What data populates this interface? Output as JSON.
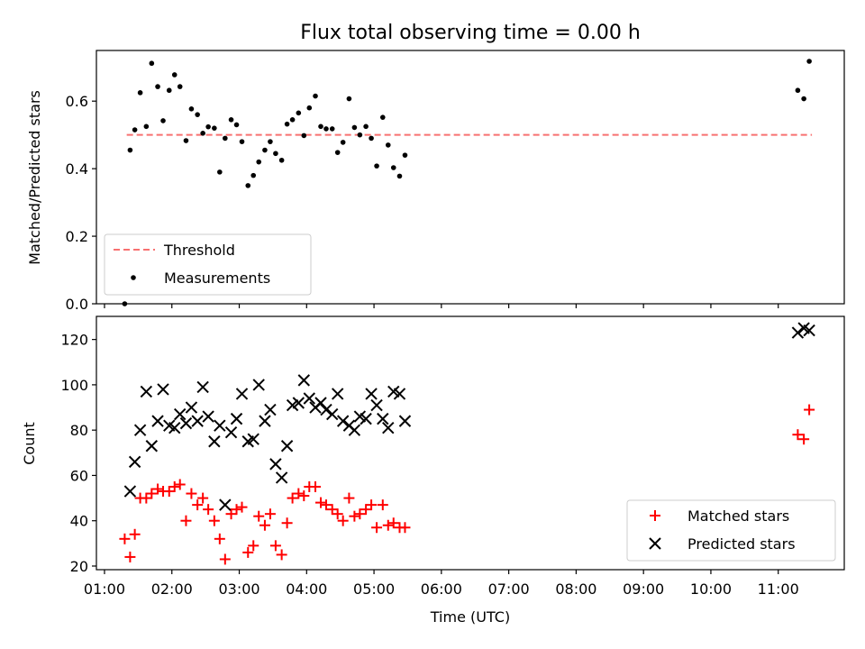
{
  "chart_data": [
    {
      "type": "scatter",
      "title": "Flux total observing time = 0.00 h",
      "ylabel": "Matched/Predicted stars",
      "xlabel": "",
      "x_unit": "hours UTC",
      "xlim": [
        0.88,
        11.98
      ],
      "ylim": [
        0.0,
        0.75
      ],
      "yticks": [
        0.0,
        0.2,
        0.4,
        0.6
      ],
      "ytick_labels": [
        "0.0",
        "0.2",
        "0.4",
        "0.6"
      ],
      "legend": "lower-left",
      "threshold": {
        "name": "Threshold",
        "value": 0.5,
        "x_range": [
          1.33,
          11.5
        ],
        "color": "#f87171"
      },
      "series": [
        {
          "name": "Measurements",
          "color": "#000000",
          "points": [
            [
              1.3,
              0.0
            ],
            [
              1.38,
              0.455
            ],
            [
              1.45,
              0.515
            ],
            [
              1.53,
              0.625
            ],
            [
              1.62,
              0.525
            ],
            [
              1.7,
              0.712
            ],
            [
              1.79,
              0.643
            ],
            [
              1.87,
              0.542
            ],
            [
              1.96,
              0.632
            ],
            [
              2.04,
              0.678
            ],
            [
              2.12,
              0.643
            ],
            [
              2.21,
              0.483
            ],
            [
              2.29,
              0.577
            ],
            [
              2.38,
              0.56
            ],
            [
              2.46,
              0.505
            ],
            [
              2.54,
              0.524
            ],
            [
              2.63,
              0.52
            ],
            [
              2.71,
              0.39
            ],
            [
              2.79,
              0.49
            ],
            [
              2.88,
              0.545
            ],
            [
              2.96,
              0.53
            ],
            [
              3.04,
              0.48
            ],
            [
              3.13,
              0.35
            ],
            [
              3.21,
              0.38
            ],
            [
              3.29,
              0.42
            ],
            [
              3.38,
              0.455
            ],
            [
              3.46,
              0.48
            ],
            [
              3.54,
              0.445
            ],
            [
              3.63,
              0.425
            ],
            [
              3.71,
              0.532
            ],
            [
              3.79,
              0.545
            ],
            [
              3.88,
              0.565
            ],
            [
              3.96,
              0.498
            ],
            [
              4.04,
              0.58
            ],
            [
              4.13,
              0.615
            ],
            [
              4.21,
              0.525
            ],
            [
              4.29,
              0.518
            ],
            [
              4.38,
              0.518
            ],
            [
              4.46,
              0.448
            ],
            [
              4.54,
              0.478
            ],
            [
              4.63,
              0.607
            ],
            [
              4.71,
              0.522
            ],
            [
              4.79,
              0.5
            ],
            [
              4.88,
              0.525
            ],
            [
              4.96,
              0.49
            ],
            [
              5.04,
              0.408
            ],
            [
              5.13,
              0.552
            ],
            [
              5.21,
              0.47
            ],
            [
              5.29,
              0.403
            ],
            [
              5.38,
              0.378
            ],
            [
              5.46,
              0.44
            ],
            [
              11.29,
              0.632
            ],
            [
              11.38,
              0.607
            ],
            [
              11.46,
              0.718
            ]
          ]
        }
      ]
    },
    {
      "type": "scatter",
      "title": "",
      "ylabel": "Count",
      "xlabel": "Time (UTC)",
      "x_unit": "hours UTC",
      "xlim": [
        0.88,
        11.98
      ],
      "ylim": [
        18.4,
        130.2
      ],
      "yticks": [
        20,
        40,
        60,
        80,
        100,
        120
      ],
      "ytick_labels": [
        "20",
        "40",
        "60",
        "80",
        "100",
        "120"
      ],
      "xticks": [
        1,
        2,
        3,
        4,
        5,
        6,
        7,
        8,
        9,
        10,
        11
      ],
      "xtick_labels": [
        "01:00",
        "02:00",
        "03:00",
        "04:00",
        "05:00",
        "06:00",
        "07:00",
        "08:00",
        "09:00",
        "10:00",
        "11:00"
      ],
      "legend": "lower-right",
      "series": [
        {
          "name": "Matched stars",
          "marker": "plus",
          "color": "#ff0000",
          "points": [
            [
              1.3,
              32
            ],
            [
              1.38,
              24
            ],
            [
              1.45,
              34
            ],
            [
              1.53,
              50
            ],
            [
              1.62,
              50
            ],
            [
              1.7,
              52
            ],
            [
              1.79,
              54
            ],
            [
              1.87,
              53
            ],
            [
              1.96,
              53
            ],
            [
              2.04,
              55
            ],
            [
              2.12,
              56
            ],
            [
              2.21,
              40
            ],
            [
              2.29,
              52
            ],
            [
              2.38,
              47
            ],
            [
              2.46,
              50
            ],
            [
              2.54,
              45
            ],
            [
              2.63,
              40
            ],
            [
              2.71,
              32
            ],
            [
              2.79,
              23
            ],
            [
              2.88,
              43
            ],
            [
              2.96,
              45
            ],
            [
              3.04,
              46
            ],
            [
              3.13,
              26
            ],
            [
              3.21,
              29
            ],
            [
              3.29,
              42
            ],
            [
              3.38,
              38
            ],
            [
              3.46,
              43
            ],
            [
              3.54,
              29
            ],
            [
              3.63,
              25
            ],
            [
              3.71,
              39
            ],
            [
              3.79,
              50
            ],
            [
              3.88,
              52
            ],
            [
              3.96,
              51
            ],
            [
              4.04,
              55
            ],
            [
              4.13,
              55
            ],
            [
              4.21,
              48
            ],
            [
              4.29,
              47
            ],
            [
              4.38,
              45
            ],
            [
              4.46,
              43
            ],
            [
              4.54,
              40
            ],
            [
              4.63,
              50
            ],
            [
              4.71,
              42
            ],
            [
              4.79,
              43
            ],
            [
              4.88,
              45
            ],
            [
              4.96,
              47
            ],
            [
              5.04,
              37
            ],
            [
              5.13,
              47
            ],
            [
              5.21,
              38
            ],
            [
              5.29,
              39
            ],
            [
              5.38,
              37
            ],
            [
              5.46,
              37
            ],
            [
              11.29,
              78
            ],
            [
              11.38,
              76
            ],
            [
              11.46,
              89
            ]
          ]
        },
        {
          "name": "Predicted stars",
          "marker": "x",
          "color": "#000000",
          "points": [
            [
              1.38,
              53
            ],
            [
              1.45,
              66
            ],
            [
              1.53,
              80
            ],
            [
              1.62,
              97
            ],
            [
              1.7,
              73
            ],
            [
              1.79,
              84
            ],
            [
              1.87,
              98
            ],
            [
              1.96,
              82
            ],
            [
              2.04,
              81
            ],
            [
              2.12,
              87
            ],
            [
              2.21,
              83
            ],
            [
              2.29,
              90
            ],
            [
              2.38,
              84
            ],
            [
              2.46,
              99
            ],
            [
              2.54,
              86
            ],
            [
              2.63,
              75
            ],
            [
              2.71,
              82
            ],
            [
              2.79,
              47
            ],
            [
              2.88,
              79
            ],
            [
              2.96,
              85
            ],
            [
              3.04,
              96
            ],
            [
              3.13,
              75
            ],
            [
              3.21,
              76
            ],
            [
              3.29,
              100
            ],
            [
              3.38,
              84
            ],
            [
              3.46,
              89
            ],
            [
              3.54,
              65
            ],
            [
              3.63,
              59
            ],
            [
              3.71,
              73
            ],
            [
              3.79,
              91
            ],
            [
              3.88,
              92
            ],
            [
              3.96,
              102
            ],
            [
              4.04,
              94
            ],
            [
              4.13,
              90
            ],
            [
              4.21,
              92
            ],
            [
              4.29,
              89
            ],
            [
              4.38,
              87
            ],
            [
              4.46,
              96
            ],
            [
              4.54,
              84
            ],
            [
              4.63,
              82
            ],
            [
              4.71,
              80
            ],
            [
              4.79,
              86
            ],
            [
              4.88,
              85
            ],
            [
              4.96,
              96
            ],
            [
              5.04,
              91
            ],
            [
              5.13,
              85
            ],
            [
              5.21,
              81
            ],
            [
              5.29,
              97
            ],
            [
              5.38,
              96
            ],
            [
              5.46,
              84
            ],
            [
              11.29,
              123
            ],
            [
              11.38,
              125
            ],
            [
              11.46,
              124
            ]
          ]
        }
      ]
    }
  ]
}
